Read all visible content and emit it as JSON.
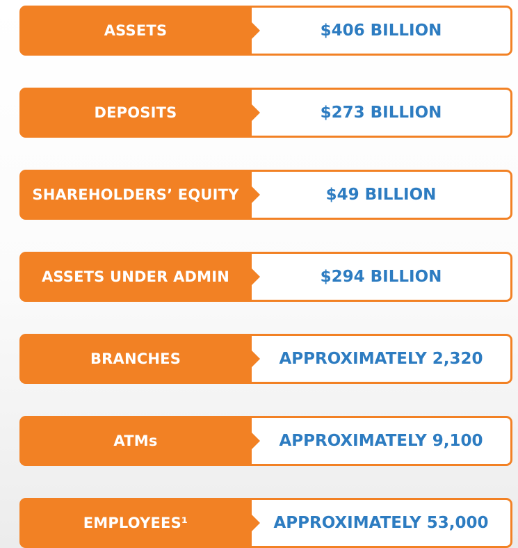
{
  "rows": [
    {
      "label": "ASSETS",
      "value": "$406 BILLION"
    },
    {
      "label": "DEPOSITS",
      "value": "$273 BILLION"
    },
    {
      "label": "SHAREHOLDERS’ EQUITY",
      "value": "$49 BILLION"
    },
    {
      "label": "ASSETS UNDER ADMIN",
      "value": "$294 BILLION"
    },
    {
      "label": "BRANCHES",
      "value": "APPROXIMATELY 2,320"
    },
    {
      "label": "ATMs",
      "value": "APPROXIMATELY 9,100"
    },
    {
      "label": "EMPLOYEES¹",
      "value": "APPROXIMATELY 53,000"
    }
  ]
}
